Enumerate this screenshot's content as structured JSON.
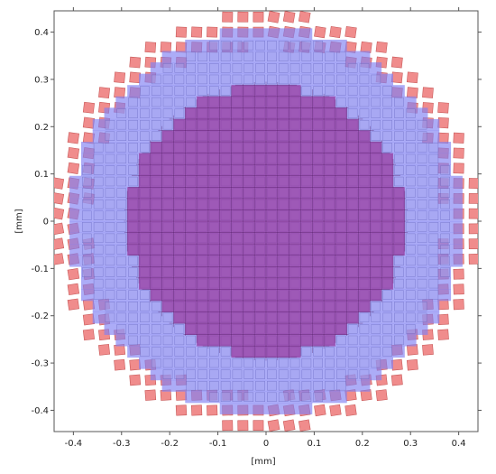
{
  "chart_data": {
    "type": "scatter",
    "title": "",
    "xlabel": "[mm]",
    "ylabel": "[mm]",
    "xlim": [
      -0.44,
      0.44
    ],
    "ylim": [
      -0.445,
      0.445
    ],
    "xticks": [
      "-0.4",
      "-0.3",
      "-0.2",
      "-0.1",
      "0",
      "0.1",
      "0.2",
      "0.3",
      "0.4"
    ],
    "yticks": [
      "0.4",
      "0.3",
      "0.2",
      "0.1",
      "0",
      "-0.1",
      "-0.2",
      "-0.3",
      "-0.4"
    ],
    "grid": false,
    "legend": "none",
    "series": [
      {
        "marker": "square",
        "color": "#f08c8c",
        "pitch_mm": 0.032,
        "square_size_mm": 0.021,
        "ring_inner_radius_mm": 0.37,
        "ring_outer_radius_mm": 0.44,
        "note_shape": "outer-ring"
      },
      {
        "marker": "filled-region",
        "color": "#7f7ff2",
        "region_radius_mm": 0.405,
        "note_shape": "disk"
      },
      {
        "marker": "square",
        "color": "#a4a4ee",
        "pitch_mm": 0.024,
        "square_size_mm": 0.019,
        "region_radius_mm": 0.39,
        "note_shape": "disk-grid"
      },
      {
        "marker": "filled-region",
        "color": "#9a3aa0",
        "region_radius_mm": 0.285,
        "note_shape": "inner-disk"
      }
    ]
  }
}
